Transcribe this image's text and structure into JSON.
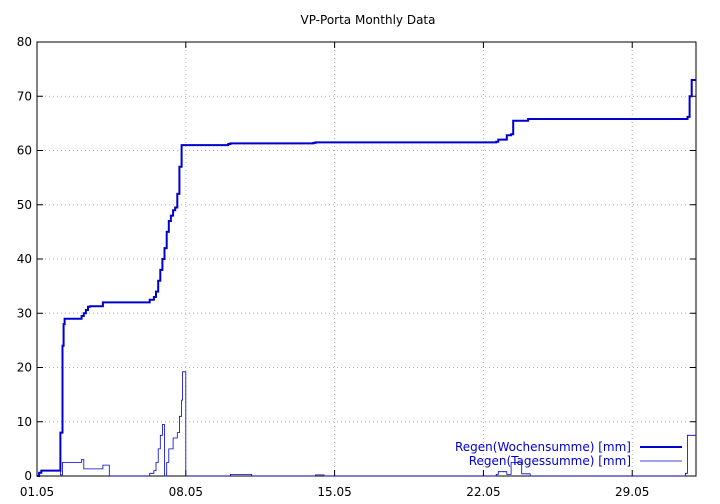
{
  "chart_data": {
    "type": "line",
    "title": "VP-Porta Monthly Data",
    "xlabel": "",
    "ylabel": "",
    "xlim": [
      1,
      32
    ],
    "ylim": [
      0,
      80
    ],
    "x_ticks": [
      {
        "value": 1,
        "label": "01.05"
      },
      {
        "value": 8,
        "label": "08.05"
      },
      {
        "value": 15,
        "label": "15.05"
      },
      {
        "value": 22,
        "label": "22.05"
      },
      {
        "value": 29,
        "label": "29.05"
      }
    ],
    "y_ticks": [
      0,
      10,
      20,
      30,
      40,
      50,
      60,
      70,
      80
    ],
    "grid": true,
    "legend_position": "bottom-right",
    "series": [
      {
        "name": "Regen(Wochensumme) [mm]",
        "color": "#0000cc",
        "style": "thick",
        "x": [
          1.0,
          1.1,
          1.2,
          2.0,
          2.1,
          2.2,
          2.25,
          2.3,
          2.4,
          2.5,
          3.0,
          3.1,
          3.2,
          3.3,
          3.4,
          3.5,
          4.0,
          4.1,
          5.0,
          6.0,
          6.3,
          6.5,
          6.6,
          6.7,
          6.8,
          6.9,
          7.0,
          7.1,
          7.2,
          7.3,
          7.4,
          7.5,
          7.6,
          7.7,
          7.8,
          7.85,
          7.9,
          8.0,
          10.0,
          10.1,
          14.0,
          14.1,
          21.0,
          22.0,
          22.6,
          22.7,
          23.0,
          23.1,
          23.3,
          23.4,
          24.0,
          24.1,
          31.5,
          31.6,
          31.7,
          31.8,
          32.0
        ],
        "y": [
          0,
          0.6,
          1.0,
          1.0,
          8,
          24,
          28,
          29,
          29,
          29,
          29,
          29.5,
          30,
          30.6,
          31.2,
          31.3,
          31.3,
          32,
          32,
          32,
          32.5,
          33,
          34,
          36,
          38,
          40,
          42,
          45,
          47,
          48,
          49,
          49.5,
          52,
          57,
          61,
          61,
          61,
          61,
          61.2,
          61.3,
          61.4,
          61.5,
          61.5,
          61.5,
          61.6,
          62,
          62,
          62.8,
          63,
          65.5,
          65.5,
          65.8,
          65.8,
          66.2,
          70,
          73,
          73
        ]
      },
      {
        "name": "Regen(Tagessumme) [mm]",
        "color": "#0000cc",
        "style": "thin",
        "x": [
          1.0,
          1.1,
          1.2,
          2.0,
          2.1,
          2.2,
          2.3,
          3.0,
          3.1,
          3.2,
          3.4,
          3.5,
          4.0,
          4.1,
          4.3,
          4.4,
          5.0,
          6.0,
          6.3,
          6.5,
          6.6,
          6.7,
          6.8,
          6.9,
          7.0,
          7.1,
          7.2,
          7.4,
          7.6,
          7.7,
          7.8,
          7.85,
          7.9,
          7.95,
          8.0,
          10.0,
          10.1,
          11.0,
          11.1,
          14.0,
          14.1,
          14.4,
          14.5,
          21.0,
          22.0,
          22.6,
          22.7,
          23.0,
          23.1,
          23.3,
          23.4,
          23.7,
          23.8,
          24.1,
          24.2,
          31.4,
          31.5,
          31.6,
          31.8,
          32.0
        ],
        "y": [
          0,
          0.6,
          1.0,
          1.0,
          0.2,
          2.5,
          2.5,
          2.5,
          3.0,
          1.3,
          1.3,
          1.3,
          1.3,
          2.0,
          2.0,
          0,
          0,
          0,
          0.5,
          1.0,
          2.5,
          5.0,
          7.5,
          9.5,
          0,
          2.5,
          5.0,
          7.0,
          8.0,
          11.0,
          14.0,
          19.2,
          19.2,
          19.2,
          0,
          0,
          0.3,
          0.3,
          0,
          0,
          0.2,
          0.2,
          0,
          0,
          0,
          0.3,
          0.8,
          0.8,
          0.3,
          2.5,
          2.5,
          2.5,
          0.4,
          0.4,
          0,
          0,
          0.5,
          7.5,
          7.5,
          7.5
        ]
      }
    ]
  }
}
